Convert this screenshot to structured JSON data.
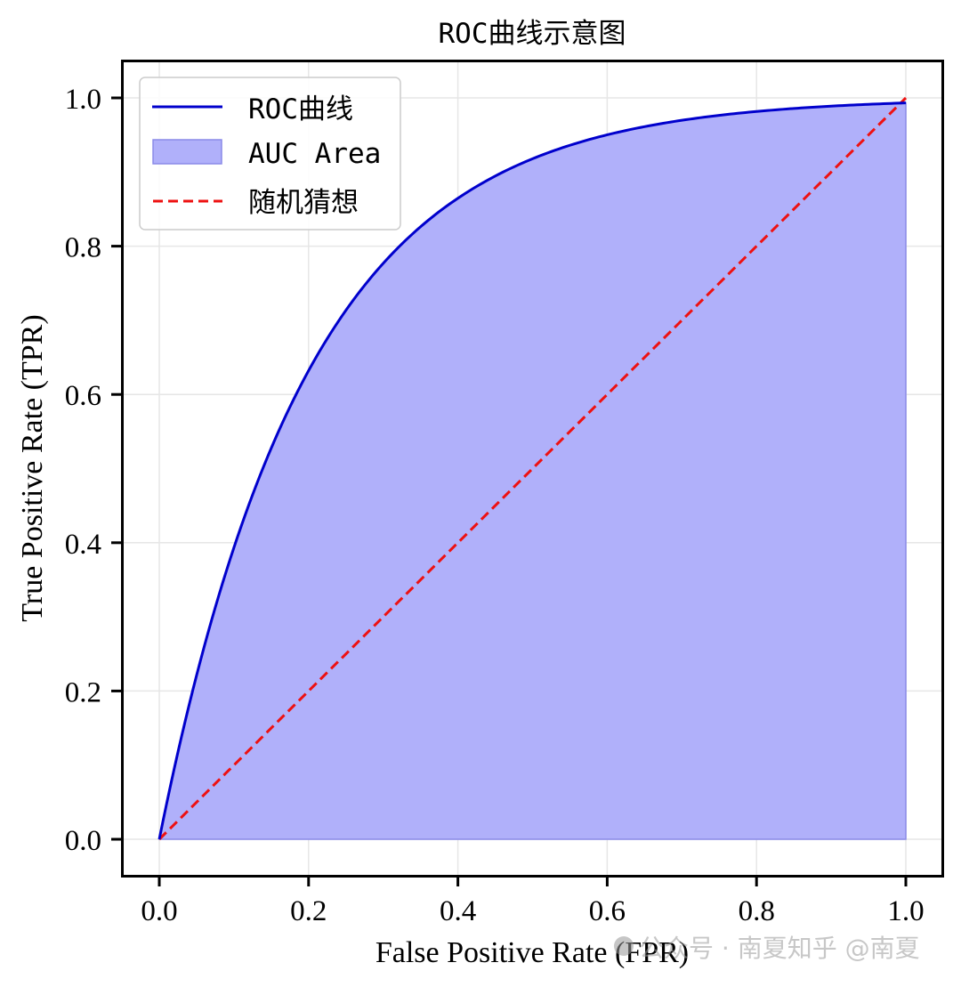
{
  "chart_data": {
    "type": "line",
    "title": "ROC曲线示意图",
    "xlabel": "False Positive Rate (FPR)",
    "ylabel": "True Positive Rate (TPR)",
    "xlim": [
      -0.05,
      1.05
    ],
    "ylim": [
      -0.05,
      1.05
    ],
    "xticks": [
      "0.0",
      "0.2",
      "0.4",
      "0.6",
      "0.8",
      "1.0"
    ],
    "yticks": [
      "0.0",
      "0.2",
      "0.4",
      "0.6",
      "0.8",
      "1.0"
    ],
    "grid": true,
    "legend_position": "upper left",
    "legend": [
      "ROC曲线",
      "AUC Area",
      "随机猜想"
    ],
    "series": [
      {
        "name": "ROC曲线",
        "kind": "line",
        "color": "#0000cc",
        "formula": "TPR = 1 - exp(-5 * FPR)",
        "x": [
          0.0,
          0.05,
          0.1,
          0.15,
          0.2,
          0.25,
          0.3,
          0.35,
          0.4,
          0.45,
          0.5,
          0.55,
          0.6,
          0.65,
          0.7,
          0.75,
          0.8,
          0.85,
          0.9,
          0.95,
          1.0
        ],
        "y": [
          0.0,
          0.221,
          0.393,
          0.528,
          0.632,
          0.713,
          0.777,
          0.826,
          0.865,
          0.895,
          0.918,
          0.936,
          0.95,
          0.961,
          0.97,
          0.976,
          0.982,
          0.986,
          0.989,
          0.991,
          0.993
        ]
      },
      {
        "name": "AUC Area",
        "kind": "area",
        "color": "#0000ff",
        "alpha": 0.3,
        "description": "fill between ROC curve and y=0 from FPR 0 to 1"
      },
      {
        "name": "随机猜想",
        "kind": "dashed-line",
        "color": "#ee1111",
        "x": [
          0.0,
          1.0
        ],
        "y": [
          0.0,
          1.0
        ]
      }
    ],
    "watermark": "公众号 · 南夏知乎 @南夏"
  },
  "colors": {
    "roc_line": "#0000cc",
    "auc_fill": "#b0b0fa",
    "auc_edge": "#8a8ae8",
    "random_line": "#ee1111",
    "grid": "#e6e6e6",
    "axes": "#000000"
  }
}
